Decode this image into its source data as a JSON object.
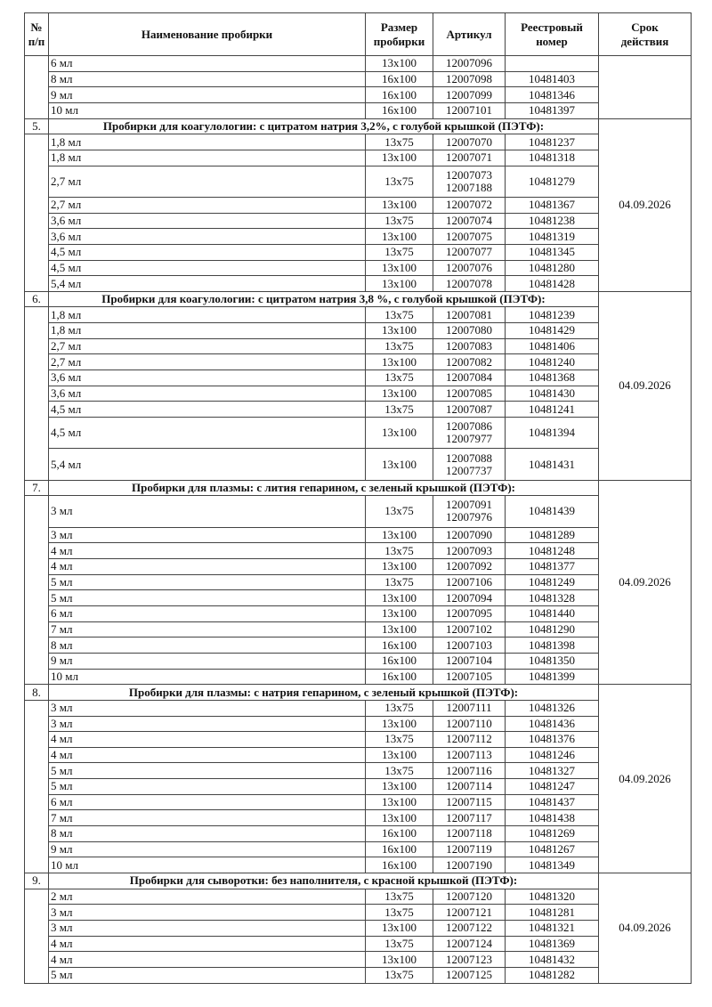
{
  "headers": {
    "num": [
      "№",
      "п/п"
    ],
    "name": "Наименование пробирки",
    "size": [
      "Размер",
      "пробирки"
    ],
    "article": "Артикул",
    "registry": [
      "Реестровый",
      "номер"
    ],
    "validity": [
      "Срок",
      "действия"
    ]
  },
  "sections": [
    {
      "num": "",
      "title": "",
      "date": "",
      "items": [
        {
          "name": "6 мл",
          "size": "13x100",
          "article": [
            "12007096"
          ],
          "registry": ""
        },
        {
          "name": "8 мл",
          "size": "16x100",
          "article": [
            "12007098"
          ],
          "registry": "10481403"
        },
        {
          "name": "9 мл",
          "size": "16x100",
          "article": [
            "12007099"
          ],
          "registry": "10481346"
        },
        {
          "name": "10 мл",
          "size": "16x100",
          "article": [
            "12007101"
          ],
          "registry": "10481397"
        }
      ]
    },
    {
      "num": "5.",
      "title": "Пробирки для коагулологии: с цитратом натрия 3,2%, с голубой крышкой (ПЭТФ):",
      "date": "04.09.2026",
      "items": [
        {
          "name": "1,8 мл",
          "size": "13x75",
          "article": [
            "12007070"
          ],
          "registry": "10481237"
        },
        {
          "name": "1,8 мл",
          "size": "13x100",
          "article": [
            "12007071"
          ],
          "registry": "10481318"
        },
        {
          "name": "2,7 мл",
          "size": "13x75",
          "article": [
            "12007073",
            "12007188"
          ],
          "registry": "10481279"
        },
        {
          "name": "2,7 мл",
          "size": "13x100",
          "article": [
            "12007072"
          ],
          "registry": "10481367"
        },
        {
          "name": "3,6 мл",
          "size": "13x75",
          "article": [
            "12007074"
          ],
          "registry": "10481238"
        },
        {
          "name": "3,6 мл",
          "size": "13x100",
          "article": [
            "12007075"
          ],
          "registry": "10481319"
        },
        {
          "name": "4,5 мл",
          "size": "13x75",
          "article": [
            "12007077"
          ],
          "registry": "10481345"
        },
        {
          "name": "4,5 мл",
          "size": "13x100",
          "article": [
            "12007076"
          ],
          "registry": "10481280"
        },
        {
          "name": "5,4 мл",
          "size": "13x100",
          "article": [
            "12007078"
          ],
          "registry": "10481428"
        }
      ]
    },
    {
      "num": "6.",
      "title": "Пробирки для коагулологии: с цитратом натрия 3,8 %, с голубой крышкой (ПЭТФ):",
      "date": "04.09.2026",
      "items": [
        {
          "name": "1,8 мл",
          "size": "13x75",
          "article": [
            "12007081"
          ],
          "registry": "10481239"
        },
        {
          "name": "1,8 мл",
          "size": "13x100",
          "article": [
            "12007080"
          ],
          "registry": "10481429"
        },
        {
          "name": "2,7 мл",
          "size": "13x75",
          "article": [
            "12007083"
          ],
          "registry": "10481406"
        },
        {
          "name": "2,7 мл",
          "size": "13x100",
          "article": [
            "12007082"
          ],
          "registry": "10481240"
        },
        {
          "name": "3,6 мл",
          "size": "13x75",
          "article": [
            "12007084"
          ],
          "registry": "10481368"
        },
        {
          "name": "3,6 мл",
          "size": "13x100",
          "article": [
            "12007085"
          ],
          "registry": "10481430"
        },
        {
          "name": "4,5 мл",
          "size": "13x75",
          "article": [
            "12007087"
          ],
          "registry": "10481241"
        },
        {
          "name": "4,5 мл",
          "size": "13x100",
          "article": [
            "12007086",
            "12007977"
          ],
          "registry": "10481394"
        },
        {
          "name": "5,4 мл",
          "size": "13x100",
          "article": [
            "12007088",
            "12007737"
          ],
          "registry": "10481431"
        }
      ]
    },
    {
      "num": "7.",
      "title": "Пробирки для плазмы: с лития гепарином, с зеленый крышкой (ПЭТФ):",
      "date": "04.09.2026",
      "items": [
        {
          "name": "3 мл",
          "size": "13x75",
          "article": [
            "12007091",
            "12007976"
          ],
          "registry": "10481439"
        },
        {
          "name": "3 мл",
          "size": "13x100",
          "article": [
            "12007090"
          ],
          "registry": "10481289"
        },
        {
          "name": "4 мл",
          "size": "13x75",
          "article": [
            "12007093"
          ],
          "registry": "10481248"
        },
        {
          "name": "4 мл",
          "size": "13x100",
          "article": [
            "12007092"
          ],
          "registry": "10481377"
        },
        {
          "name": "5 мл",
          "size": "13x75",
          "article": [
            "12007106"
          ],
          "registry": "10481249"
        },
        {
          "name": "5 мл",
          "size": "13x100",
          "article": [
            "12007094"
          ],
          "registry": "10481328"
        },
        {
          "name": "6 мл",
          "size": "13x100",
          "article": [
            "12007095"
          ],
          "registry": "10481440"
        },
        {
          "name": "7 мл",
          "size": "13x100",
          "article": [
            "12007102"
          ],
          "registry": "10481290"
        },
        {
          "name": "8 мл",
          "size": "16x100",
          "article": [
            "12007103"
          ],
          "registry": "10481398"
        },
        {
          "name": "9 мл",
          "size": "16x100",
          "article": [
            "12007104"
          ],
          "registry": "10481350"
        },
        {
          "name": "10 мл",
          "size": "16x100",
          "article": [
            "12007105"
          ],
          "registry": "10481399"
        }
      ]
    },
    {
      "num": "8.",
      "title": "Пробирки для плазмы: с натрия гепарином, с зеленый крышкой (ПЭТФ):",
      "date": "04.09.2026",
      "items": [
        {
          "name": "3 мл",
          "size": "13x75",
          "article": [
            "12007111"
          ],
          "registry": "10481326"
        },
        {
          "name": "3 мл",
          "size": "13x100",
          "article": [
            "12007110"
          ],
          "registry": "10481436"
        },
        {
          "name": "4 мл",
          "size": "13x75",
          "article": [
            "12007112"
          ],
          "registry": "10481376"
        },
        {
          "name": "4 мл",
          "size": "13x100",
          "article": [
            "12007113"
          ],
          "registry": "10481246"
        },
        {
          "name": "5 мл",
          "size": "13x75",
          "article": [
            "12007116"
          ],
          "registry": "10481327"
        },
        {
          "name": "5 мл",
          "size": "13x100",
          "article": [
            "12007114"
          ],
          "registry": "10481247"
        },
        {
          "name": "6 мл",
          "size": "13x100",
          "article": [
            "12007115"
          ],
          "registry": "10481437"
        },
        {
          "name": "7 мл",
          "size": "13x100",
          "article": [
            "12007117"
          ],
          "registry": "10481438"
        },
        {
          "name": "8 мл",
          "size": "16x100",
          "article": [
            "12007118"
          ],
          "registry": "10481269"
        },
        {
          "name": "9 мл",
          "size": "16x100",
          "article": [
            "12007119"
          ],
          "registry": "10481267"
        },
        {
          "name": "10 мл",
          "size": "16x100",
          "article": [
            "12007190"
          ],
          "registry": "10481349"
        }
      ]
    },
    {
      "num": "9.",
      "title": "Пробирки для сыворотки: без наполнителя, с красной крышкой (ПЭТФ):",
      "date": "04.09.2026",
      "items": [
        {
          "name": "2 мл",
          "size": "13x75",
          "article": [
            "12007120"
          ],
          "registry": "10481320"
        },
        {
          "name": "3 мл",
          "size": "13x75",
          "article": [
            "12007121"
          ],
          "registry": "10481281"
        },
        {
          "name": "3 мл",
          "size": "13x100",
          "article": [
            "12007122"
          ],
          "registry": "10481321"
        },
        {
          "name": "4 мл",
          "size": "13x75",
          "article": [
            "12007124"
          ],
          "registry": "10481369"
        },
        {
          "name": "4 мл",
          "size": "13x100",
          "article": [
            "12007123"
          ],
          "registry": "10481432"
        },
        {
          "name": "5 мл",
          "size": "13x75",
          "article": [
            "12007125"
          ],
          "registry": "10481282"
        }
      ]
    }
  ]
}
